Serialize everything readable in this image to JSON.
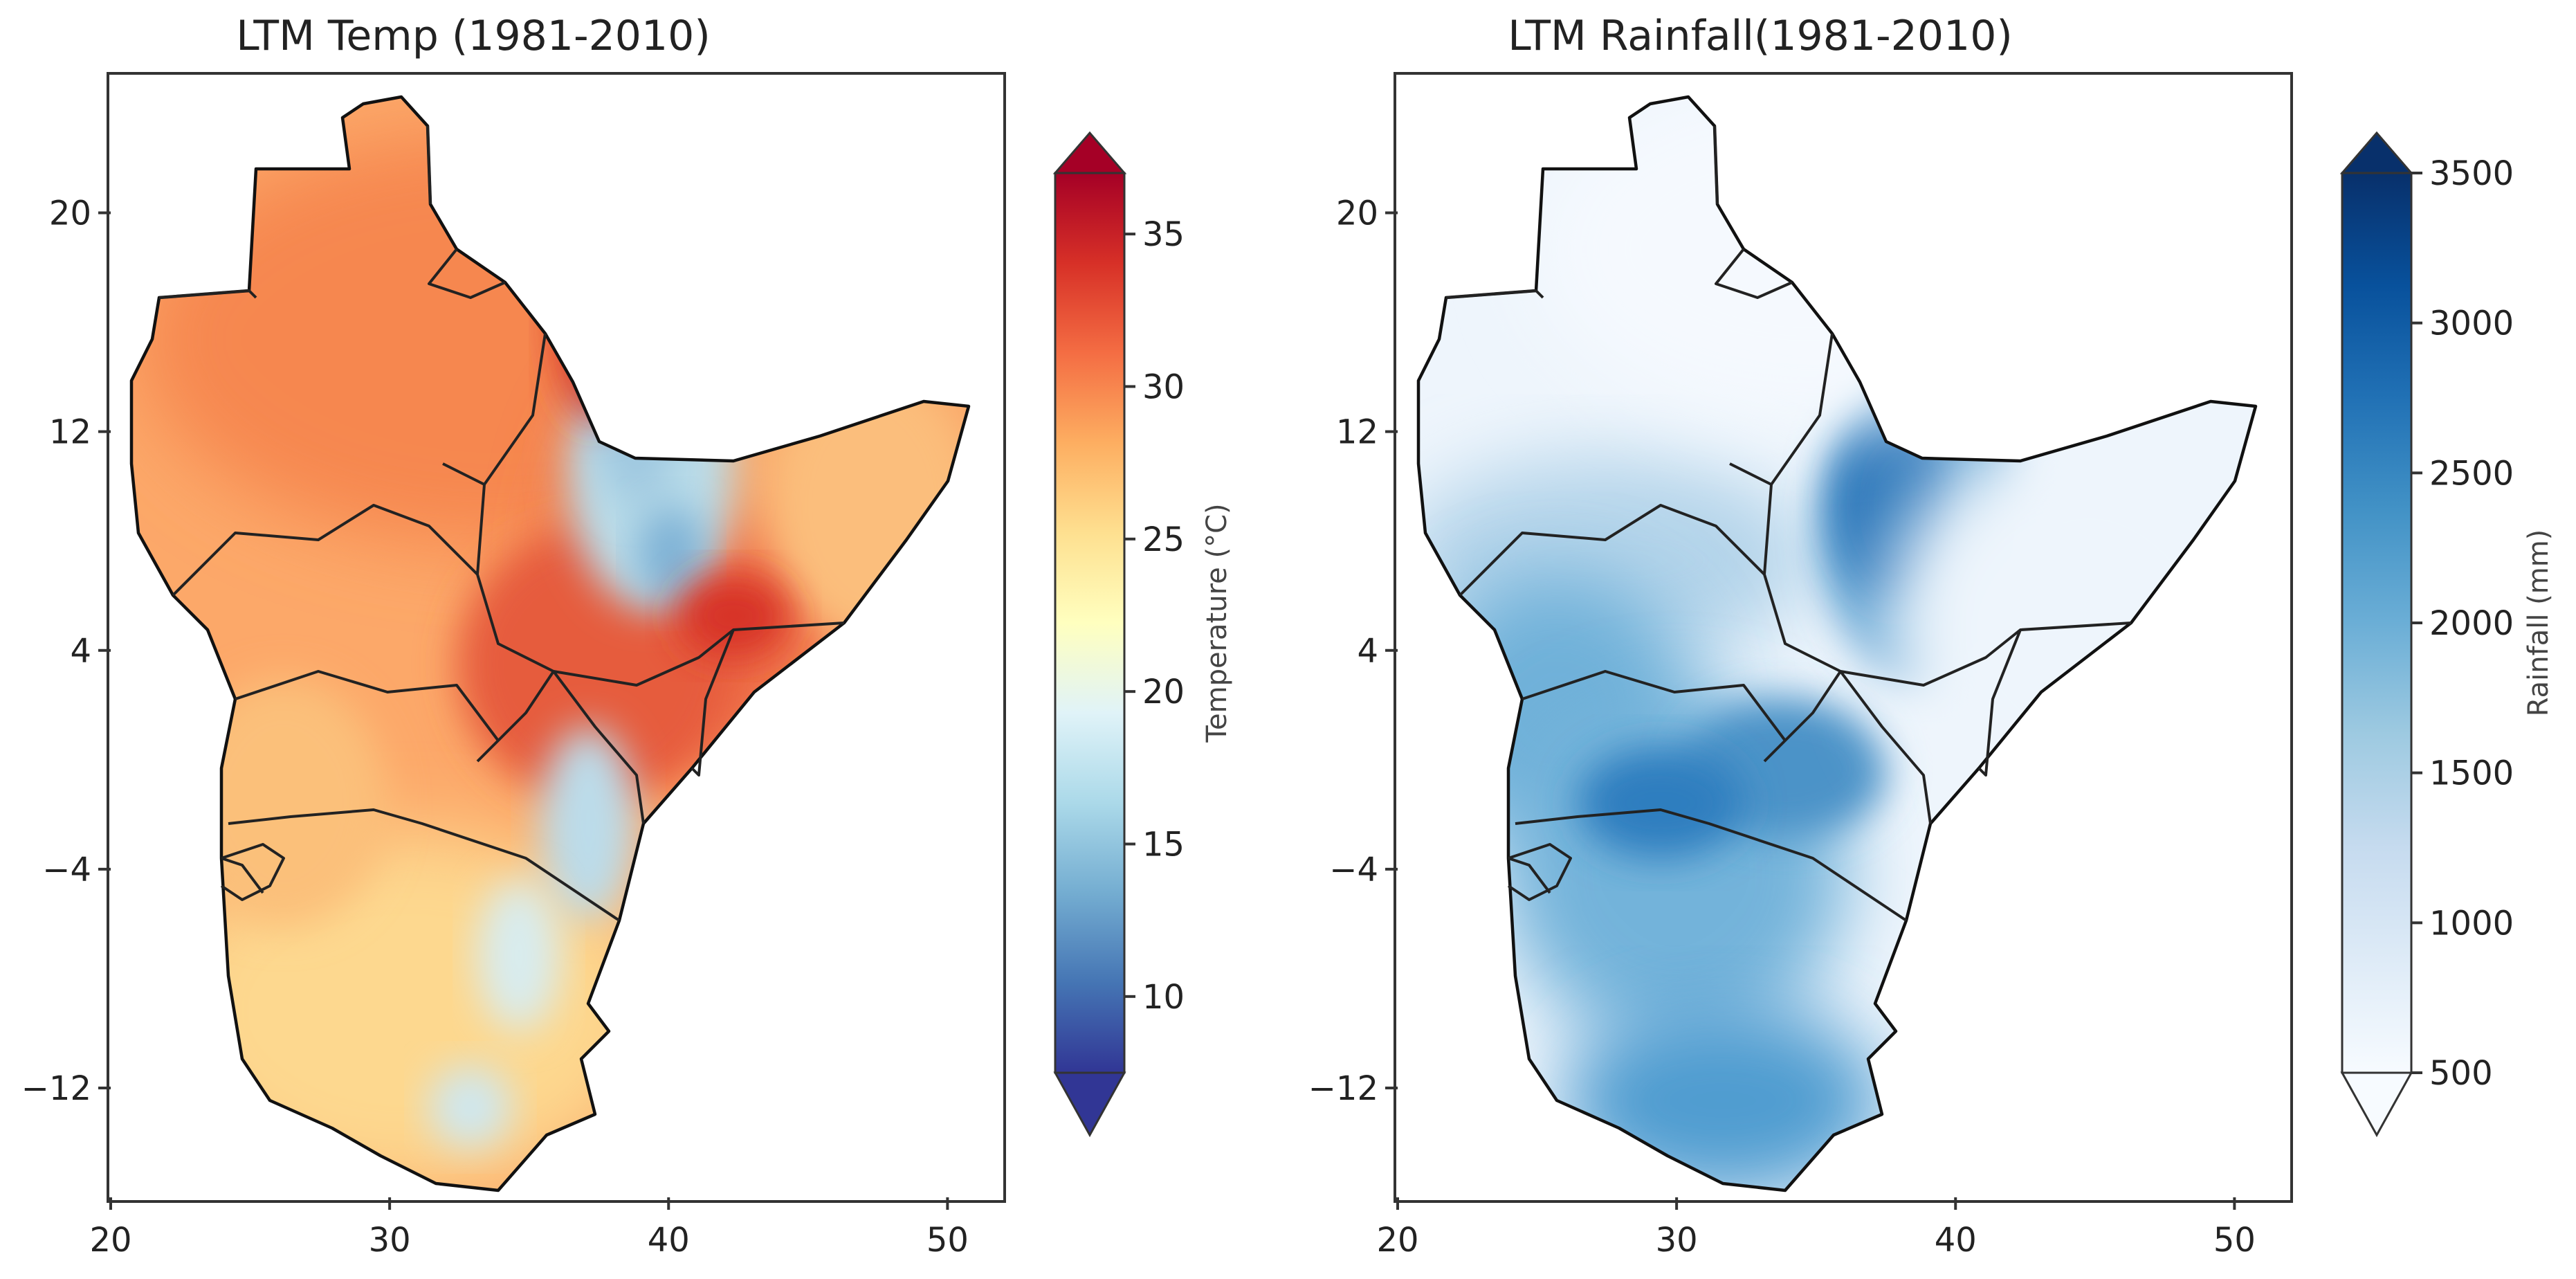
{
  "panels": [
    {
      "id": "temp",
      "title": "LTM Temp (1981-2010)",
      "variable": "Temperature",
      "colorbar": {
        "label": "Temperature (°C)",
        "ticks": [
          "10",
          "15",
          "20",
          "25",
          "30",
          "35"
        ],
        "tick_values": [
          10,
          15,
          20,
          25,
          30,
          35
        ],
        "range": [
          7.5,
          37
        ],
        "extend": "both",
        "colormap": [
          "#313695",
          "#4575b4",
          "#74add1",
          "#abd9e9",
          "#e0f3f8",
          "#ffffbf",
          "#fee090",
          "#fdae61",
          "#f46d43",
          "#d73027",
          "#a50026"
        ]
      }
    },
    {
      "id": "rain",
      "title": "LTM Rainfall(1981-2010)",
      "variable": "Rainfall",
      "colorbar": {
        "label": "Rainfall (mm)",
        "ticks": [
          "500",
          "1000",
          "1500",
          "2000",
          "2500",
          "3000",
          "3500"
        ],
        "tick_values": [
          500,
          1000,
          1500,
          2000,
          2500,
          3000,
          3500
        ],
        "range": [
          500,
          3500
        ],
        "extend": "both",
        "colormap": [
          "#f7fbff",
          "#deebf7",
          "#c6dbef",
          "#9ecae1",
          "#6baed6",
          "#4292c6",
          "#2171b5",
          "#08519c",
          "#08306b"
        ]
      }
    }
  ],
  "axes": {
    "x_ticks": [
      "20",
      "30",
      "40",
      "50"
    ],
    "x_values": [
      20,
      30,
      40,
      50
    ],
    "y_ticks": [
      "20",
      "12",
      "4",
      "−4",
      "−12"
    ],
    "y_values": [
      20,
      12,
      4,
      -4,
      -12
    ],
    "xlim": [
      20,
      52
    ],
    "ylim": [
      -16,
      25
    ]
  }
}
